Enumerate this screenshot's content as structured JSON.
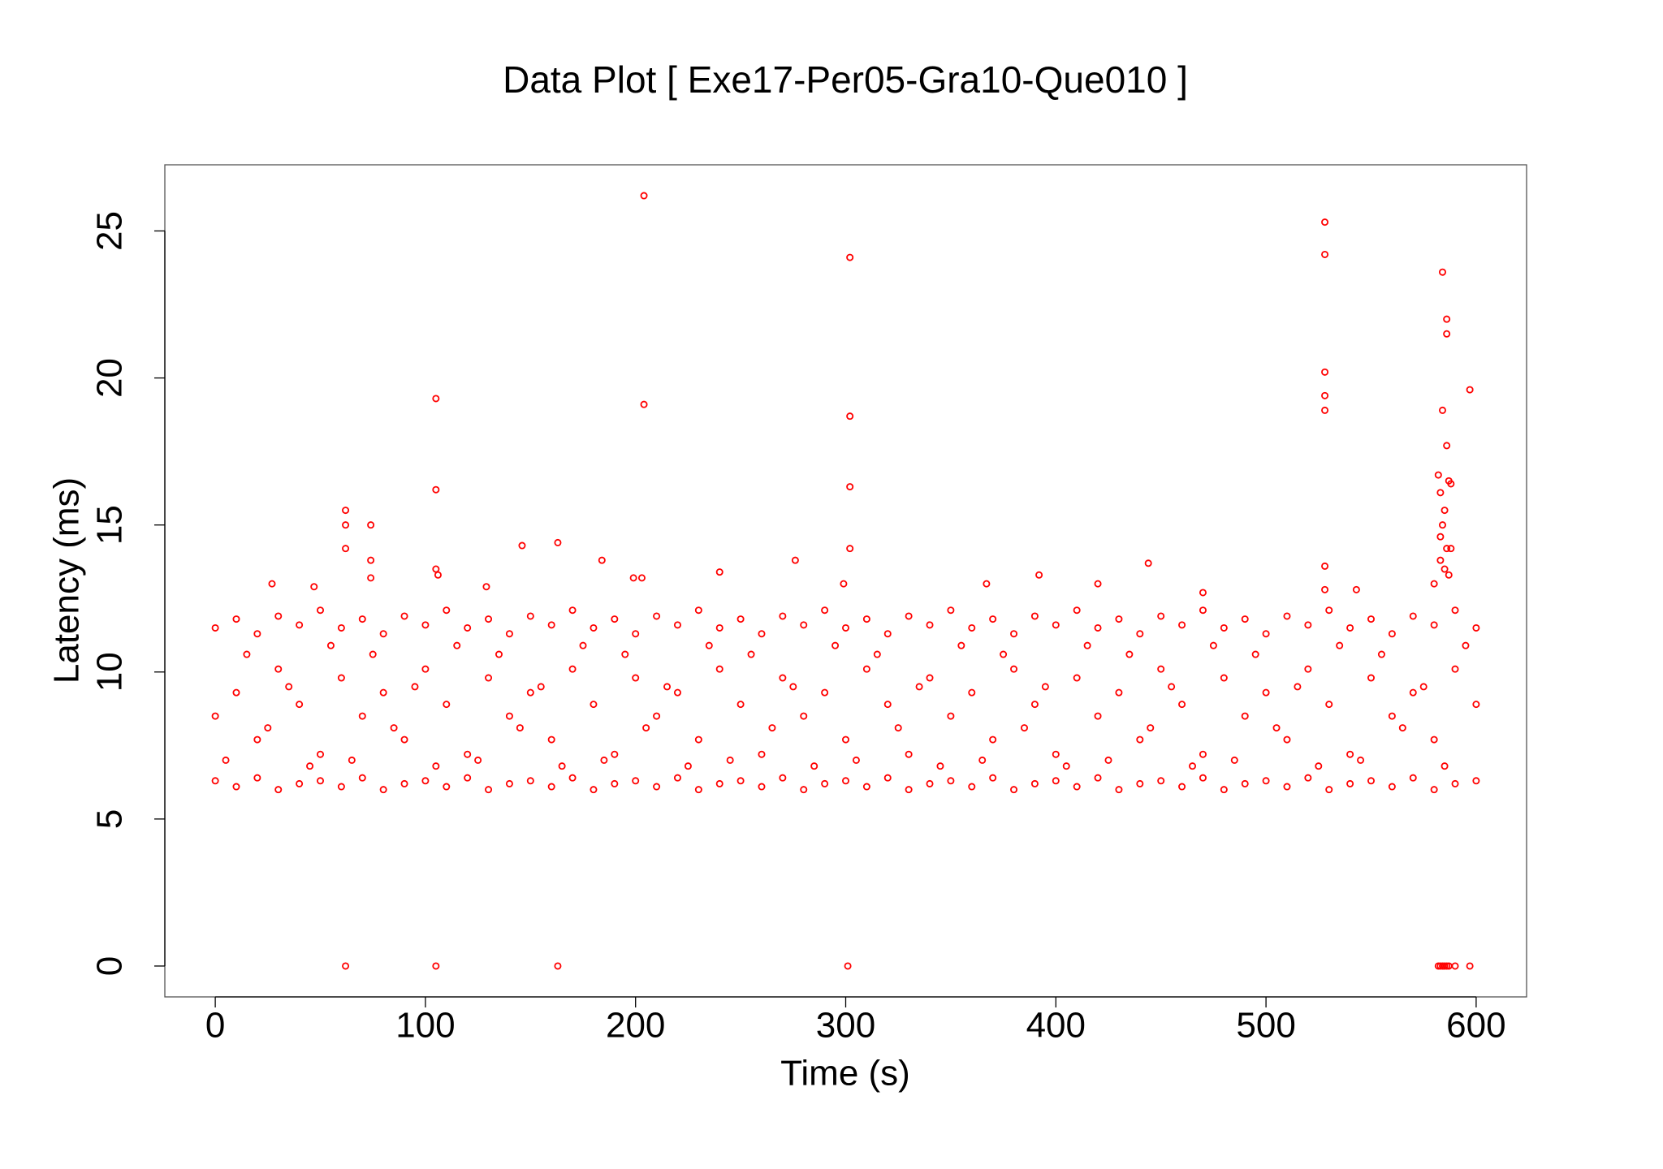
{
  "chart_data": {
    "type": "scatter",
    "title": "Data Plot [ Exe17-Per05-Gra10-Que010 ]",
    "x_label": "Time (s)",
    "y_label": "Latency (ms)",
    "color": "#ff0000",
    "xlim": [
      -24,
      624
    ],
    "ylim": [
      -1.05,
      27.25
    ],
    "xticks": [
      0,
      100,
      200,
      300,
      400,
      500,
      600
    ],
    "yticks": [
      0,
      5,
      10,
      15,
      20,
      25
    ],
    "x": [
      62,
      62,
      62,
      62,
      74,
      74,
      74,
      105,
      105,
      105,
      106,
      105,
      146,
      163,
      163,
      184,
      204,
      204,
      203,
      199,
      240,
      276,
      302,
      302,
      302,
      302,
      301,
      299,
      392,
      420,
      444,
      528,
      528,
      528,
      528,
      528,
      528,
      528,
      584,
      584,
      586,
      586,
      586,
      582,
      583,
      585,
      584,
      587,
      588,
      583,
      586,
      588,
      583,
      585,
      587,
      597,
      582,
      583,
      584,
      585,
      586,
      587,
      590,
      597,
      27,
      47,
      129,
      367,
      543,
      470,
      580,
      0,
      0,
      0,
      5,
      10,
      10,
      10,
      15,
      20,
      20,
      20,
      25,
      30,
      30,
      30,
      35,
      40,
      40,
      40,
      45,
      50,
      50,
      50,
      55,
      60,
      60,
      60,
      65,
      70,
      70,
      70,
      75,
      80,
      80,
      80,
      85,
      90,
      90,
      90,
      95,
      100,
      100,
      100,
      105,
      110,
      110,
      110,
      115,
      120,
      120,
      120,
      125,
      130,
      130,
      130,
      135,
      140,
      140,
      140,
      145,
      150,
      150,
      150,
      155,
      160,
      160,
      160,
      165,
      170,
      170,
      170,
      175,
      180,
      180,
      180,
      185,
      190,
      190,
      190,
      195,
      200,
      200,
      200,
      205,
      210,
      210,
      210,
      215,
      220,
      220,
      220,
      225,
      230,
      230,
      230,
      235,
      240,
      240,
      240,
      245,
      250,
      250,
      250,
      255,
      260,
      260,
      260,
      265,
      270,
      270,
      270,
      275,
      280,
      280,
      280,
      285,
      290,
      290,
      290,
      295,
      300,
      300,
      300,
      305,
      310,
      310,
      310,
      315,
      320,
      320,
      320,
      325,
      330,
      330,
      330,
      335,
      340,
      340,
      340,
      345,
      350,
      350,
      350,
      355,
      360,
      360,
      360,
      365,
      370,
      370,
      370,
      375,
      380,
      380,
      380,
      385,
      390,
      390,
      390,
      395,
      400,
      400,
      400,
      405,
      410,
      410,
      410,
      415,
      420,
      420,
      420,
      425,
      430,
      430,
      430,
      435,
      440,
      440,
      440,
      445,
      450,
      450,
      450,
      455,
      460,
      460,
      460,
      465,
      470,
      470,
      470,
      475,
      480,
      480,
      480,
      485,
      490,
      490,
      490,
      495,
      500,
      500,
      500,
      505,
      510,
      510,
      510,
      515,
      520,
      520,
      520,
      525,
      530,
      530,
      530,
      535,
      540,
      540,
      540,
      545,
      550,
      550,
      550,
      555,
      560,
      560,
      560,
      565,
      570,
      570,
      570,
      575,
      580,
      580,
      580,
      585,
      590,
      590,
      590,
      595,
      600,
      600,
      600
    ],
    "values": [
      15.5,
      15.0,
      14.2,
      0,
      15.0,
      13.8,
      13.2,
      19.3,
      16.2,
      13.5,
      13.3,
      0,
      14.3,
      14.4,
      0,
      13.8,
      26.2,
      19.1,
      13.2,
      13.2,
      13.4,
      13.8,
      24.1,
      18.7,
      16.3,
      14.2,
      0,
      13.0,
      13.3,
      13.0,
      13.7,
      25.3,
      24.2,
      20.2,
      19.4,
      18.9,
      13.6,
      12.8,
      23.6,
      18.9,
      17.7,
      22.0,
      21.5,
      16.7,
      16.1,
      15.5,
      15.0,
      16.5,
      16.4,
      14.6,
      14.2,
      14.2,
      13.8,
      13.5,
      13.3,
      19.6,
      0,
      0,
      0,
      0,
      0,
      0,
      0,
      0,
      13.0,
      12.9,
      12.9,
      13.0,
      12.8,
      12.7,
      13.0,
      6.3,
      8.5,
      11.5,
      7.0,
      6.1,
      9.3,
      11.8,
      10.6,
      6.4,
      7.7,
      11.3,
      8.1,
      6.0,
      10.1,
      11.9,
      9.5,
      6.2,
      8.9,
      11.6,
      6.8,
      6.3,
      7.2,
      12.1,
      10.9,
      6.1,
      9.8,
      11.5,
      7.0,
      6.4,
      8.5,
      11.8,
      10.6,
      6.0,
      9.3,
      11.3,
      8.1,
      6.2,
      7.7,
      11.9,
      9.5,
      6.3,
      10.1,
      11.6,
      6.8,
      6.1,
      8.9,
      12.1,
      10.9,
      6.4,
      7.2,
      11.5,
      7.0,
      6.0,
      9.8,
      11.8,
      10.6,
      6.2,
      8.5,
      11.3,
      8.1,
      6.3,
      9.3,
      11.9,
      9.5,
      6.1,
      7.7,
      11.6,
      6.8,
      6.4,
      10.1,
      12.1,
      10.9,
      6.0,
      8.9,
      11.5,
      7.0,
      6.2,
      7.2,
      11.8,
      10.6,
      6.3,
      9.8,
      11.3,
      8.1,
      6.1,
      8.5,
      11.9,
      9.5,
      6.4,
      9.3,
      11.6,
      6.8,
      6.0,
      7.7,
      12.1,
      10.9,
      6.2,
      10.1,
      11.5,
      7.0,
      6.3,
      8.9,
      11.8,
      10.6,
      6.1,
      7.2,
      11.3,
      8.1,
      6.4,
      9.8,
      11.9,
      9.5,
      6.0,
      8.5,
      11.6,
      6.8,
      6.2,
      9.3,
      12.1,
      10.9,
      6.3,
      7.7,
      11.5,
      7.0,
      6.1,
      10.1,
      11.8,
      10.6,
      6.4,
      8.9,
      11.3,
      8.1,
      6.0,
      7.2,
      11.9,
      9.5,
      6.2,
      9.8,
      11.6,
      6.8,
      6.3,
      8.5,
      12.1,
      10.9,
      6.1,
      9.3,
      11.5,
      7.0,
      6.4,
      7.7,
      11.8,
      10.6,
      6.0,
      10.1,
      11.3,
      8.1,
      6.2,
      8.9,
      11.9,
      9.5,
      6.3,
      7.2,
      11.6,
      6.8,
      6.1,
      9.8,
      12.1,
      10.9,
      6.4,
      8.5,
      11.5,
      7.0,
      6.0,
      9.3,
      11.8,
      10.6,
      6.2,
      7.7,
      11.3,
      8.1,
      6.3,
      10.1,
      11.9,
      9.5,
      6.1,
      8.9,
      11.6,
      6.8,
      6.4,
      7.2,
      12.1,
      10.9,
      6.0,
      9.8,
      11.5,
      7.0,
      6.2,
      8.5,
      11.8,
      10.6,
      6.3,
      9.3,
      11.3,
      8.1,
      6.1,
      7.7,
      11.9,
      9.5,
      6.4,
      10.1,
      11.6,
      6.8,
      6.0,
      8.9,
      12.1,
      10.9,
      6.2,
      7.2,
      11.5,
      7.0,
      6.3,
      9.8,
      11.8,
      10.6,
      6.1,
      8.5,
      11.3,
      8.1,
      6.4,
      9.3,
      11.9,
      9.5,
      6.0,
      7.7,
      11.6,
      6.8,
      6.2,
      10.1,
      12.1,
      10.9,
      6.3,
      8.9,
      11.5
    ]
  }
}
